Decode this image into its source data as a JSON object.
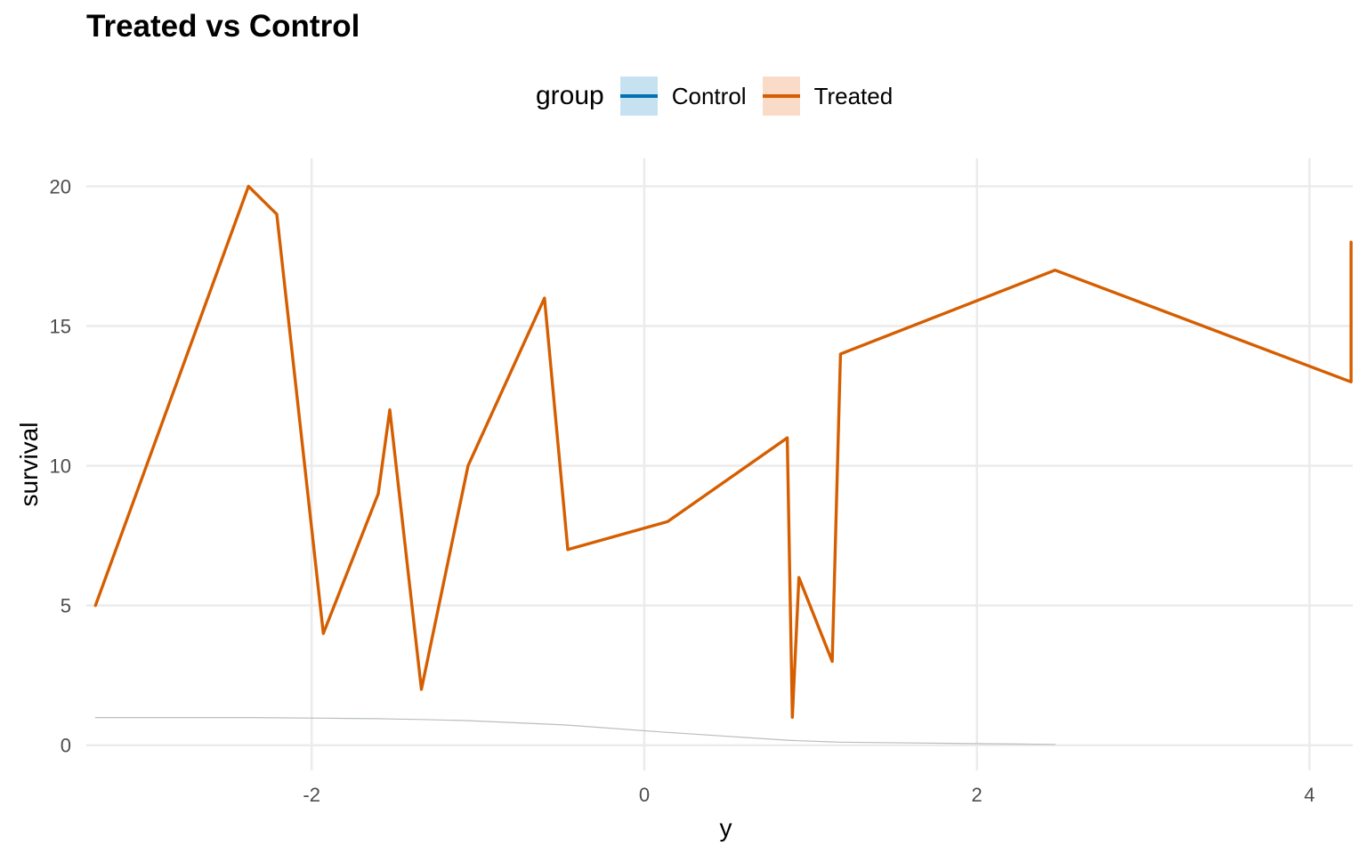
{
  "chart_data": {
    "type": "line",
    "title": "Treated vs Control",
    "xlabel": "y",
    "ylabel": "survival",
    "xlim": [
      -3.355,
      4.26
    ],
    "ylim": [
      -0.9,
      21.0
    ],
    "x_ticks": [
      -2,
      0,
      2,
      4
    ],
    "x_tick_labels": [
      "-2",
      "0",
      "2",
      "4"
    ],
    "y_ticks": [
      0,
      5,
      10,
      15,
      20
    ],
    "y_tick_labels": [
      "0",
      "5",
      "10",
      "15",
      "20"
    ],
    "grid": true,
    "legend": {
      "title": "group",
      "placement": "top",
      "entries": [
        "Control",
        "Treated"
      ]
    },
    "series": [
      {
        "name": "Treated",
        "color": "#D55E00",
        "fill": "#FADBC8",
        "x": [
          -3.3,
          -2.38,
          -2.21,
          -1.93,
          -1.6,
          -1.53,
          -1.34,
          -1.06,
          -0.6,
          -0.46,
          0.14,
          0.86,
          0.89,
          0.93,
          1.13,
          1.18,
          2.47,
          4.25,
          4.25
        ],
        "y": [
          5,
          20,
          19,
          4,
          9,
          12,
          2,
          10,
          16,
          7,
          8,
          11,
          1,
          6,
          3,
          14,
          17,
          13,
          18
        ]
      },
      {
        "name": "Control",
        "color": "#0072B2",
        "fill": "#C6E2F1",
        "x": [
          -3.3,
          -2.38,
          -2.21,
          -1.93,
          -1.6,
          -1.53,
          -1.34,
          -1.06,
          -0.6,
          -0.46,
          0.14,
          0.86,
          0.89,
          0.93,
          1.13,
          1.18,
          2.47
        ],
        "y": [
          0.99,
          0.99,
          0.98,
          0.97,
          0.95,
          0.94,
          0.92,
          0.88,
          0.76,
          0.72,
          0.46,
          0.18,
          0.17,
          0.16,
          0.12,
          0.11,
          0.03
        ]
      }
    ]
  }
}
